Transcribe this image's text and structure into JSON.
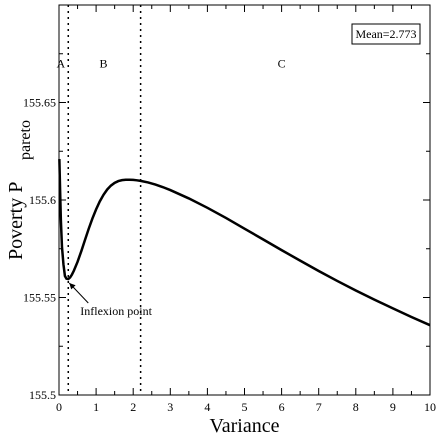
{
  "chart_data": {
    "type": "line",
    "title": "",
    "xlabel": "Variance",
    "ylabel_main": "Poverty  P",
    "ylabel_sub": "pareto",
    "xlim": [
      0,
      10
    ],
    "ylim": [
      155.5,
      155.7
    ],
    "xticks": [
      0,
      1,
      2,
      3,
      4,
      5,
      6,
      7,
      8,
      9,
      10
    ],
    "yticks": [
      155.5,
      155.55,
      155.6,
      155.65
    ],
    "ytick_labels": [
      "155.5",
      "155.55",
      "155.6",
      "155.65"
    ],
    "grid": false,
    "legend_box": "Mean=2.773",
    "legend_placement": "top-right",
    "series": [
      {
        "x": [
          0.01,
          0.03,
          0.05,
          0.08,
          0.12,
          0.16,
          0.2,
          0.25,
          0.3,
          0.35,
          0.4,
          0.5,
          0.6,
          0.7,
          0.8,
          0.9,
          1.0,
          1.1,
          1.2,
          1.3,
          1.4,
          1.5,
          1.6,
          1.7,
          1.8,
          1.9,
          2.0,
          2.1,
          2.2,
          2.4,
          2.6,
          2.8,
          3.0,
          3.5,
          4.0,
          4.5,
          5.0,
          5.5,
          6.0,
          6.5,
          7.0,
          7.5,
          8.0,
          8.5,
          9.0,
          9.5,
          10.0
        ],
        "y": [
          155.621,
          155.605,
          155.59,
          155.576,
          155.567,
          155.561,
          155.5597,
          155.5595,
          155.5603,
          155.5618,
          155.5637,
          155.5683,
          155.5737,
          155.5795,
          155.5852,
          155.5905,
          155.5952,
          155.5993,
          155.6027,
          155.6054,
          155.6074,
          155.6088,
          155.6097,
          155.6102,
          155.6104,
          155.6104,
          155.6103,
          155.6101,
          155.6098,
          155.609,
          155.6079,
          155.6066,
          155.6051,
          155.6008,
          155.596,
          155.5908,
          155.5853,
          155.5798,
          155.5743,
          155.5689,
          155.5636,
          155.5585,
          155.5536,
          155.5489,
          155.5444,
          155.54,
          155.5358
        ]
      }
    ],
    "vlines": [
      0.25,
      2.2
    ],
    "regions": [
      {
        "label": "A",
        "x": 0.05
      },
      {
        "label": "B",
        "x": 1.2
      },
      {
        "label": "C",
        "x": 6.0
      }
    ],
    "region_label_y": 155.67,
    "annotation": {
      "text": "Inflexion point",
      "point_x": 0.25,
      "point_y": 155.5595
    }
  }
}
